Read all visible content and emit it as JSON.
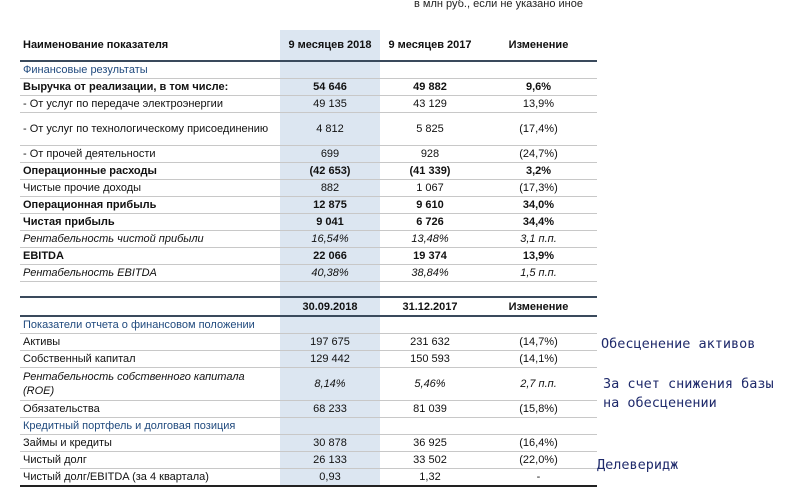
{
  "units_note": "в млн руб., если не указано иное",
  "table1": {
    "header": [
      "Наименование показателя",
      "9 месяцев 2018",
      "9 месяцев 2017",
      "Изменение"
    ],
    "rows": [
      {
        "style": "section",
        "cells": [
          "Финансовые результаты",
          "",
          "",
          ""
        ]
      },
      {
        "style": "bold",
        "cells": [
          "Выручка от реализации, в том числе:",
          "54 646",
          "49 882",
          "9,6%"
        ]
      },
      {
        "style": "",
        "cells": [
          " - От услуг по передаче электроэнергии",
          "49 135",
          "43 129",
          "13,9%"
        ]
      },
      {
        "style": "tall",
        "cells": [
          " - От услуг по технологическому присоединению",
          "4 812",
          "5 825",
          "(17,4%)"
        ]
      },
      {
        "style": "",
        "cells": [
          " - От прочей деятельности",
          "699",
          "928",
          "(24,7%)"
        ]
      },
      {
        "style": "bold",
        "cells": [
          "Операционные расходы",
          "(42 653)",
          "(41 339)",
          "3,2%"
        ]
      },
      {
        "style": "",
        "cells": [
          "Чистые прочие доходы",
          "882",
          "1 067",
          "(17,3%)"
        ]
      },
      {
        "style": "bold",
        "cells": [
          "Операционная прибыль",
          "12 875",
          "9 610",
          "34,0%"
        ]
      },
      {
        "style": "bold",
        "cells": [
          "Чистая прибыль",
          "9 041",
          "6 726",
          "34,4%"
        ]
      },
      {
        "style": "italic",
        "cells": [
          "Рентабельность чистой прибыли",
          "16,54%",
          "13,48%",
          "3,1 п.п."
        ]
      },
      {
        "style": "bold",
        "cells": [
          "EBITDA",
          "22 066",
          "19 374",
          "13,9%"
        ]
      },
      {
        "style": "italic",
        "cells": [
          "Рентабельность EBITDA",
          "40,38%",
          "38,84%",
          "1,5 п.п."
        ]
      }
    ]
  },
  "table2": {
    "header": [
      "",
      "30.09.2018",
      "31.12.2017",
      "Изменение"
    ],
    "rows": [
      {
        "style": "section",
        "cells": [
          "Показатели отчета о финансовом положении",
          "",
          "",
          ""
        ]
      },
      {
        "style": "",
        "cells": [
          "Активы",
          "197 675",
          "231 632",
          "(14,7%)"
        ]
      },
      {
        "style": "",
        "cells": [
          "Собственный капитал",
          "129 442",
          "150 593",
          "(14,1%)"
        ]
      },
      {
        "style": "italic tall",
        "cells": [
          "Рентабельность собственного капитала (ROE)",
          "8,14%",
          "5,46%",
          "2,7 п.п."
        ]
      },
      {
        "style": "",
        "cells": [
          "Обязательства",
          "68 233",
          "81 039",
          "(15,8%)"
        ]
      },
      {
        "style": "section",
        "cells": [
          "Кредитный портфель и долговая позиция",
          "",
          "",
          ""
        ]
      },
      {
        "style": "",
        "cells": [
          "Займы и кредиты",
          "30 878",
          "36 925",
          "(16,4%)"
        ]
      },
      {
        "style": "",
        "cells": [
          "Чистый долг",
          "26 133",
          "33 502",
          "(22,0%)"
        ]
      },
      {
        "style": "last",
        "cells": [
          "Чистый долг/EBITDA (за 4 квартала)",
          "0,93",
          "1,32",
          "-"
        ]
      }
    ]
  },
  "notes": {
    "impairment": "Обесценение активов",
    "roe_line1": "За счет снижения базы",
    "roe_line2": "на обесценении",
    "deleverage": "Делеверидж"
  }
}
